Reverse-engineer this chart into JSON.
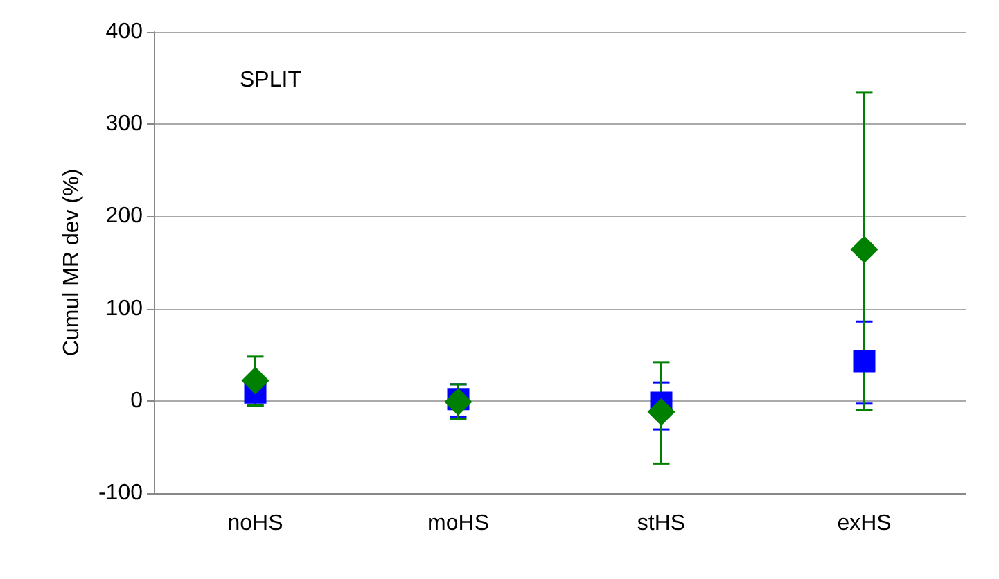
{
  "chart_data": {
    "type": "scatter",
    "ylabel": "Cumul MR dev (%)",
    "annotations": [
      "SPLIT"
    ],
    "categories": [
      "noHS",
      "moHS",
      "stHS",
      "exHS"
    ],
    "series": [
      {
        "color": "#0000ff",
        "marker": "square",
        "values": [
          9,
          2,
          -2,
          43
        ],
        "errors": [
          [
            -5,
            9
          ],
          [
            -17,
            18
          ],
          [
            -31,
            20
          ],
          [
            -3,
            86
          ]
        ]
      },
      {
        "color": "#008000",
        "marker": "diamond",
        "values": [
          22,
          -1,
          -12,
          164
        ],
        "errors": [
          [
            -5,
            48
          ],
          [
            -20,
            18
          ],
          [
            -68,
            42
          ],
          [
            -10,
            334
          ]
        ]
      }
    ],
    "ylim": [
      -100,
      400
    ],
    "yticks": [
      -100,
      0,
      100,
      200,
      300,
      400
    ],
    "grid": "y"
  }
}
